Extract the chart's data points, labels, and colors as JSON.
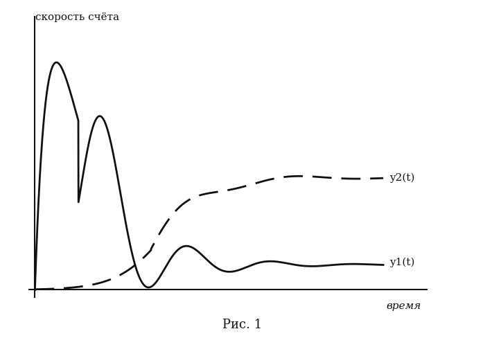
{
  "title": "",
  "xlabel": "время",
  "ylabel": "скорость счёта",
  "caption": "Рис. 1",
  "y1_label": "y1(t)",
  "y2_label": "y2(t)",
  "background_color": "#ffffff",
  "line_color": "#111111",
  "figsize": [
    7.0,
    4.88
  ],
  "dpi": 100
}
